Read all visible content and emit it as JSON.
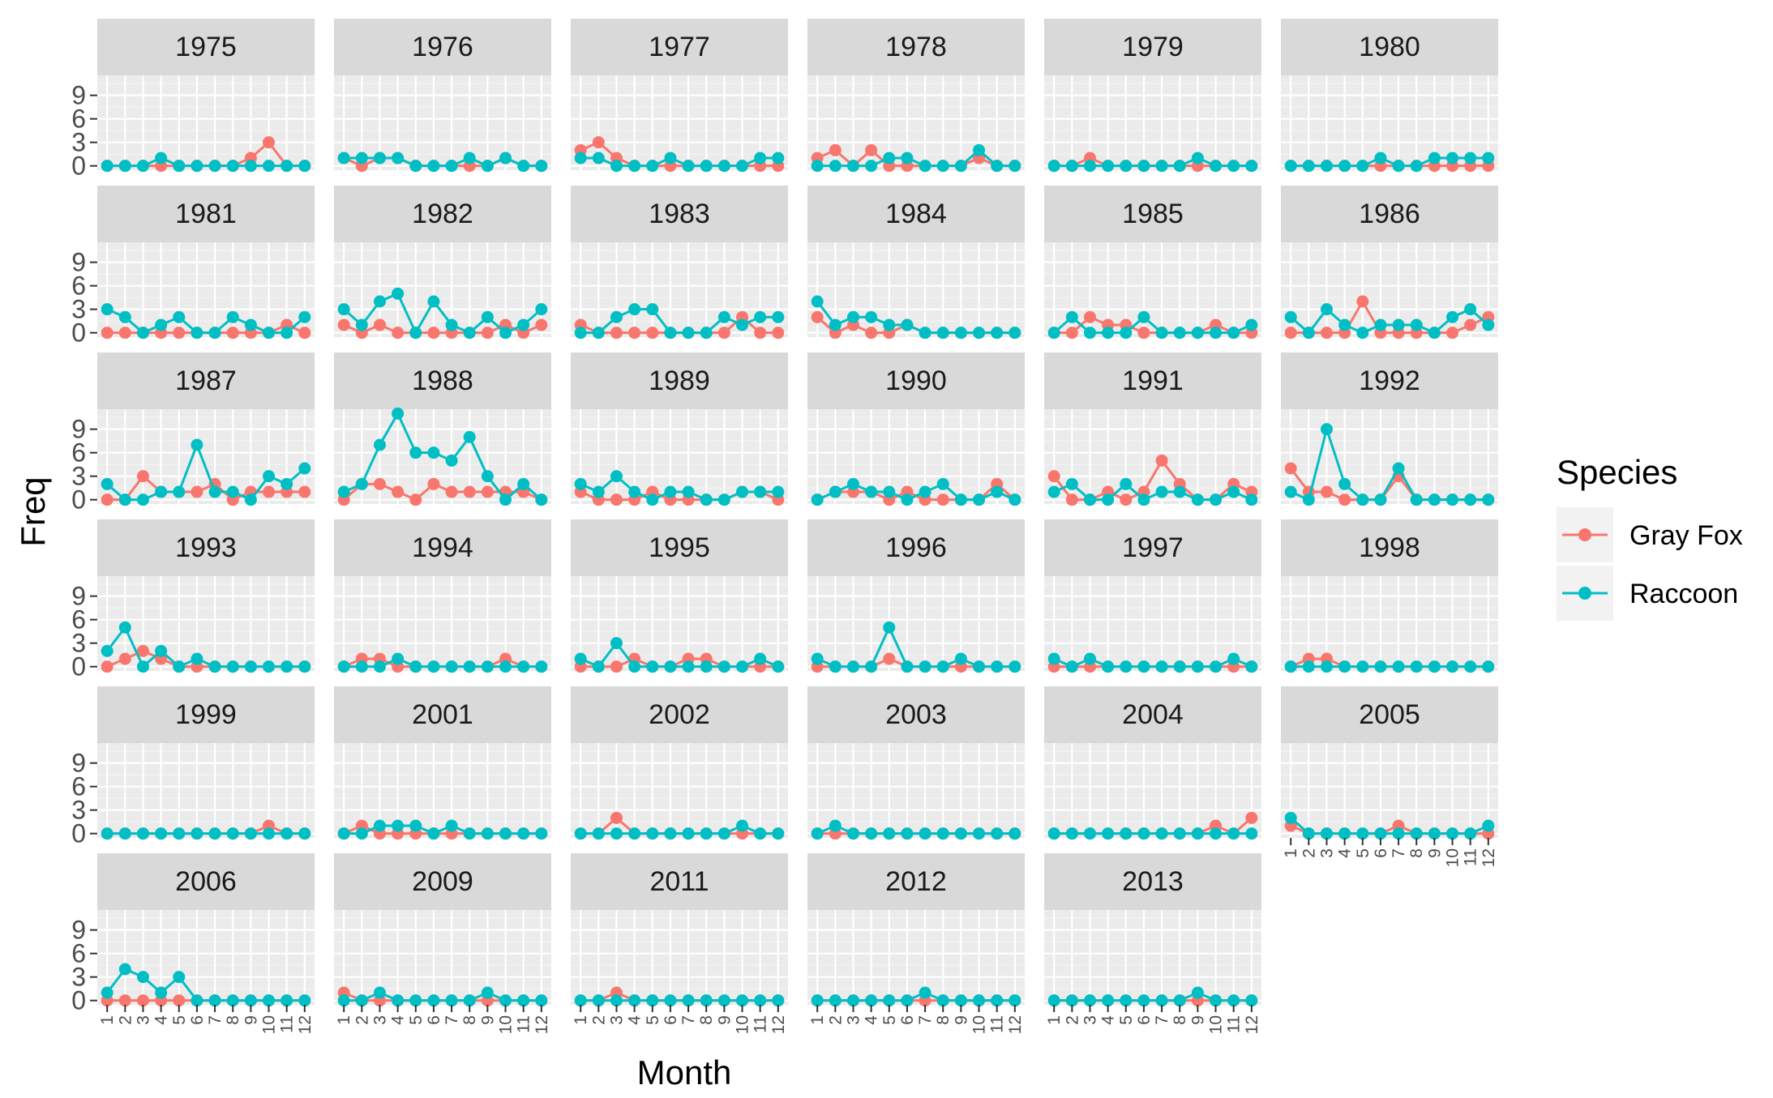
{
  "chart_data": {
    "type": "line",
    "facet_by": "year",
    "x": [
      1,
      2,
      3,
      4,
      5,
      6,
      7,
      8,
      9,
      10,
      11,
      12
    ],
    "xlabel": "Month",
    "ylabel": "Freq",
    "y_ticks": [
      0,
      3,
      6,
      9
    ],
    "ylim": [
      0,
      11
    ],
    "grid": true,
    "legend": {
      "title": "Species",
      "position": "right",
      "entries": [
        "Gray Fox",
        "Raccoon"
      ]
    },
    "series": [
      {
        "name": "Gray Fox",
        "color": "#F8766D"
      },
      {
        "name": "Raccoon",
        "color": "#00BFC4"
      }
    ],
    "panels": [
      {
        "year": "1975",
        "Gray Fox": [
          0,
          0,
          0,
          0,
          0,
          0,
          0,
          0,
          1,
          3,
          0,
          0
        ],
        "Raccoon": [
          0,
          0,
          0,
          1,
          0,
          0,
          0,
          0,
          0,
          0,
          0,
          0
        ]
      },
      {
        "year": "1976",
        "Gray Fox": [
          1,
          0,
          1,
          1,
          0,
          0,
          0,
          0,
          0,
          1,
          0,
          0
        ],
        "Raccoon": [
          1,
          1,
          1,
          1,
          0,
          0,
          0,
          1,
          0,
          1,
          0,
          0
        ]
      },
      {
        "year": "1977",
        "Gray Fox": [
          2,
          3,
          1,
          0,
          0,
          0,
          0,
          0,
          0,
          0,
          0,
          0
        ],
        "Raccoon": [
          1,
          1,
          0,
          0,
          0,
          1,
          0,
          0,
          0,
          0,
          1,
          1
        ]
      },
      {
        "year": "1978",
        "Gray Fox": [
          1,
          2,
          0,
          2,
          0,
          0,
          0,
          0,
          0,
          1,
          0,
          0
        ],
        "Raccoon": [
          0,
          0,
          0,
          0,
          1,
          1,
          0,
          0,
          0,
          2,
          0,
          0
        ]
      },
      {
        "year": "1979",
        "Gray Fox": [
          0,
          0,
          1,
          0,
          0,
          0,
          0,
          0,
          0,
          0,
          0,
          0
        ],
        "Raccoon": [
          0,
          0,
          0,
          0,
          0,
          0,
          0,
          0,
          1,
          0,
          0,
          0
        ]
      },
      {
        "year": "1980",
        "Gray Fox": [
          0,
          0,
          0,
          0,
          0,
          0,
          0,
          0,
          0,
          0,
          0,
          0
        ],
        "Raccoon": [
          0,
          0,
          0,
          0,
          0,
          1,
          0,
          0,
          1,
          1,
          1,
          1
        ]
      },
      {
        "year": "1981",
        "Gray Fox": [
          0,
          0,
          0,
          0,
          0,
          0,
          0,
          0,
          0,
          0,
          1,
          0
        ],
        "Raccoon": [
          3,
          2,
          0,
          1,
          2,
          0,
          0,
          2,
          1,
          0,
          0,
          2
        ]
      },
      {
        "year": "1982",
        "Gray Fox": [
          1,
          0,
          1,
          0,
          0,
          0,
          0,
          0,
          0,
          1,
          0,
          1
        ],
        "Raccoon": [
          3,
          1,
          4,
          5,
          0,
          4,
          1,
          0,
          2,
          0,
          1,
          3
        ]
      },
      {
        "year": "1983",
        "Gray Fox": [
          1,
          0,
          0,
          0,
          0,
          0,
          0,
          0,
          0,
          2,
          0,
          0
        ],
        "Raccoon": [
          0,
          0,
          2,
          3,
          3,
          0,
          0,
          0,
          2,
          1,
          2,
          2
        ]
      },
      {
        "year": "1984",
        "Gray Fox": [
          2,
          0,
          1,
          0,
          0,
          1,
          0,
          0,
          0,
          0,
          0,
          0
        ],
        "Raccoon": [
          4,
          1,
          2,
          2,
          1,
          1,
          0,
          0,
          0,
          0,
          0,
          0
        ]
      },
      {
        "year": "1985",
        "Gray Fox": [
          0,
          0,
          2,
          1,
          1,
          0,
          0,
          0,
          0,
          1,
          0,
          0
        ],
        "Raccoon": [
          0,
          2,
          0,
          0,
          0,
          2,
          0,
          0,
          0,
          0,
          0,
          1
        ]
      },
      {
        "year": "1986",
        "Gray Fox": [
          0,
          0,
          0,
          0,
          4,
          0,
          0,
          0,
          0,
          0,
          1,
          2
        ],
        "Raccoon": [
          2,
          0,
          3,
          1,
          0,
          1,
          1,
          1,
          0,
          2,
          3,
          1
        ]
      },
      {
        "year": "1987",
        "Gray Fox": [
          0,
          0,
          3,
          1,
          1,
          1,
          2,
          0,
          1,
          1,
          1,
          1
        ],
        "Raccoon": [
          2,
          0,
          0,
          1,
          1,
          7,
          1,
          1,
          0,
          3,
          2,
          4
        ]
      },
      {
        "year": "1988",
        "Gray Fox": [
          0,
          2,
          2,
          1,
          0,
          2,
          1,
          1,
          1,
          1,
          1,
          0
        ],
        "Raccoon": [
          1,
          2,
          7,
          11,
          6,
          6,
          5,
          8,
          3,
          0,
          2,
          0
        ]
      },
      {
        "year": "1989",
        "Gray Fox": [
          1,
          0,
          0,
          0,
          1,
          0,
          0,
          0,
          0,
          1,
          1,
          0
        ],
        "Raccoon": [
          2,
          1,
          3,
          1,
          0,
          1,
          1,
          0,
          0,
          1,
          1,
          1
        ]
      },
      {
        "year": "1990",
        "Gray Fox": [
          0,
          1,
          1,
          1,
          0,
          1,
          0,
          0,
          0,
          0,
          2,
          0
        ],
        "Raccoon": [
          0,
          1,
          2,
          1,
          1,
          0,
          1,
          2,
          0,
          0,
          1,
          0
        ]
      },
      {
        "year": "1991",
        "Gray Fox": [
          3,
          0,
          0,
          1,
          0,
          1,
          5,
          2,
          0,
          0,
          2,
          1
        ],
        "Raccoon": [
          1,
          2,
          0,
          0,
          2,
          0,
          1,
          1,
          0,
          0,
          1,
          0
        ]
      },
      {
        "year": "1992",
        "Gray Fox": [
          4,
          1,
          1,
          0,
          0,
          0,
          3,
          0,
          0,
          0,
          0,
          0
        ],
        "Raccoon": [
          1,
          0,
          9,
          2,
          0,
          0,
          4,
          0,
          0,
          0,
          0,
          0
        ]
      },
      {
        "year": "1993",
        "Gray Fox": [
          0,
          1,
          2,
          1,
          0,
          0,
          0,
          0,
          0,
          0,
          0,
          0
        ],
        "Raccoon": [
          2,
          5,
          0,
          2,
          0,
          1,
          0,
          0,
          0,
          0,
          0,
          0
        ]
      },
      {
        "year": "1994",
        "Gray Fox": [
          0,
          1,
          1,
          0,
          0,
          0,
          0,
          0,
          0,
          1,
          0,
          0
        ],
        "Raccoon": [
          0,
          0,
          0,
          1,
          0,
          0,
          0,
          0,
          0,
          0,
          0,
          0
        ]
      },
      {
        "year": "1995",
        "Gray Fox": [
          0,
          0,
          0,
          1,
          0,
          0,
          1,
          1,
          0,
          0,
          0,
          0
        ],
        "Raccoon": [
          1,
          0,
          3,
          0,
          0,
          0,
          0,
          0,
          0,
          0,
          1,
          0
        ]
      },
      {
        "year": "1996",
        "Gray Fox": [
          0,
          0,
          0,
          0,
          1,
          0,
          0,
          0,
          0,
          0,
          0,
          0
        ],
        "Raccoon": [
          1,
          0,
          0,
          0,
          5,
          0,
          0,
          0,
          1,
          0,
          0,
          0
        ]
      },
      {
        "year": "1997",
        "Gray Fox": [
          0,
          0,
          0,
          0,
          0,
          0,
          0,
          0,
          0,
          0,
          0,
          0
        ],
        "Raccoon": [
          1,
          0,
          1,
          0,
          0,
          0,
          0,
          0,
          0,
          0,
          1,
          0
        ]
      },
      {
        "year": "1998",
        "Gray Fox": [
          0,
          1,
          1,
          0,
          0,
          0,
          0,
          0,
          0,
          0,
          0,
          0
        ],
        "Raccoon": [
          0,
          0,
          0,
          0,
          0,
          0,
          0,
          0,
          0,
          0,
          0,
          0
        ]
      },
      {
        "year": "1999",
        "Gray Fox": [
          0,
          0,
          0,
          0,
          0,
          0,
          0,
          0,
          0,
          1,
          0,
          0
        ],
        "Raccoon": [
          0,
          0,
          0,
          0,
          0,
          0,
          0,
          0,
          0,
          0,
          0,
          0
        ]
      },
      {
        "year": "2001",
        "Gray Fox": [
          0,
          1,
          0,
          0,
          0,
          0,
          0,
          0,
          0,
          0,
          0,
          0
        ],
        "Raccoon": [
          0,
          0,
          1,
          1,
          1,
          0,
          1,
          0,
          0,
          0,
          0,
          0
        ]
      },
      {
        "year": "2002",
        "Gray Fox": [
          0,
          0,
          2,
          0,
          0,
          0,
          0,
          0,
          0,
          0,
          0,
          0
        ],
        "Raccoon": [
          0,
          0,
          0,
          0,
          0,
          0,
          0,
          0,
          0,
          1,
          0,
          0
        ]
      },
      {
        "year": "2003",
        "Gray Fox": [
          0,
          0,
          0,
          0,
          0,
          0,
          0,
          0,
          0,
          0,
          0,
          0
        ],
        "Raccoon": [
          0,
          1,
          0,
          0,
          0,
          0,
          0,
          0,
          0,
          0,
          0,
          0
        ]
      },
      {
        "year": "2004",
        "Gray Fox": [
          0,
          0,
          0,
          0,
          0,
          0,
          0,
          0,
          0,
          1,
          0,
          2
        ],
        "Raccoon": [
          0,
          0,
          0,
          0,
          0,
          0,
          0,
          0,
          0,
          0,
          0,
          0
        ]
      },
      {
        "year": "2005",
        "Gray Fox": [
          1,
          0,
          0,
          0,
          0,
          0,
          1,
          0,
          0,
          0,
          0,
          0
        ],
        "Raccoon": [
          2,
          0,
          0,
          0,
          0,
          0,
          0,
          0,
          0,
          0,
          0,
          1
        ]
      },
      {
        "year": "2006",
        "Gray Fox": [
          0,
          0,
          0,
          0,
          0,
          0,
          0,
          0,
          0,
          0,
          0,
          0
        ],
        "Raccoon": [
          1,
          4,
          3,
          1,
          3,
          0,
          0,
          0,
          0,
          0,
          0,
          0
        ]
      },
      {
        "year": "2009",
        "Gray Fox": [
          1,
          0,
          0,
          0,
          0,
          0,
          0,
          0,
          0,
          0,
          0,
          0
        ],
        "Raccoon": [
          0,
          0,
          1,
          0,
          0,
          0,
          0,
          0,
          1,
          0,
          0,
          0
        ]
      },
      {
        "year": "2011",
        "Gray Fox": [
          0,
          0,
          1,
          0,
          0,
          0,
          0,
          0,
          0,
          0,
          0,
          0
        ],
        "Raccoon": [
          0,
          0,
          0,
          0,
          0,
          0,
          0,
          0,
          0,
          0,
          0,
          0
        ]
      },
      {
        "year": "2012",
        "Gray Fox": [
          0,
          0,
          0,
          0,
          0,
          0,
          0,
          0,
          0,
          0,
          0,
          0
        ],
        "Raccoon": [
          0,
          0,
          0,
          0,
          0,
          0,
          1,
          0,
          0,
          0,
          0,
          0
        ]
      },
      {
        "year": "2013",
        "Gray Fox": [
          0,
          0,
          0,
          0,
          0,
          0,
          0,
          0,
          0,
          0,
          0,
          0
        ],
        "Raccoon": [
          0,
          0,
          0,
          0,
          0,
          0,
          0,
          0,
          1,
          0,
          0,
          0
        ]
      }
    ]
  }
}
